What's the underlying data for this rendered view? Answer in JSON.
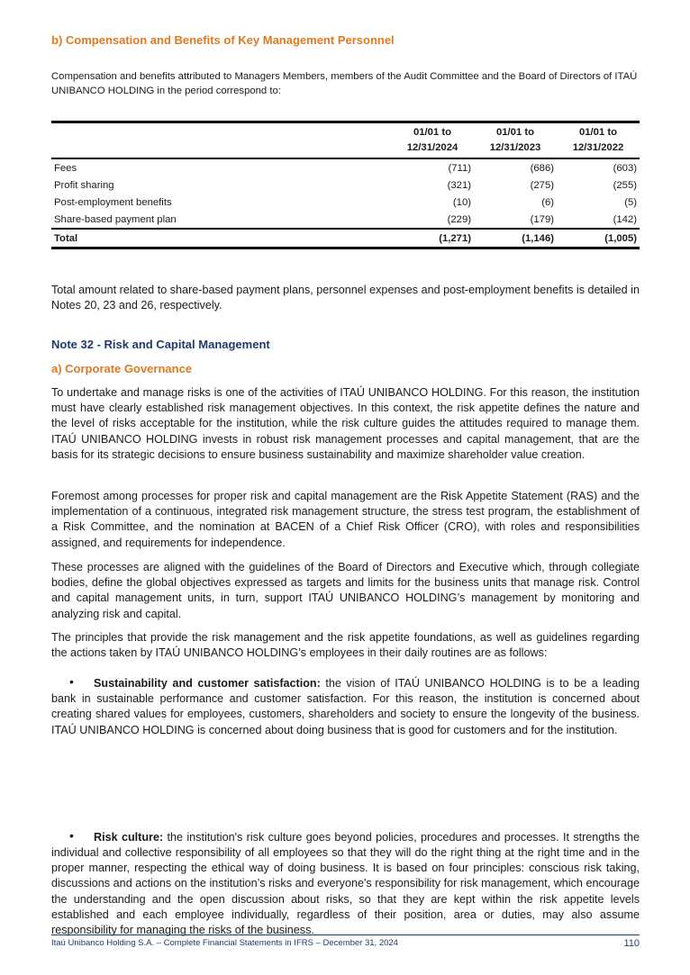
{
  "section_b": {
    "heading": "b) Compensation and Benefits of Key Management Personnel",
    "intro": "Compensation and benefits attributed to Managers Members, members of the Audit Committee and the Board of Directors of ITAÚ UNIBANCO HOLDING in the period correspond to:",
    "table": {
      "columns": [
        {
          "line1": "01/01 to",
          "line2": "12/31/2024"
        },
        {
          "line1": "01/01 to",
          "line2": "12/31/2023"
        },
        {
          "line1": "01/01 to",
          "line2": "12/31/2022"
        }
      ],
      "rows": [
        {
          "label": "Fees",
          "values": [
            "(711)",
            "(686)",
            "(603)"
          ]
        },
        {
          "label": "Profit sharing",
          "values": [
            "(321)",
            "(275)",
            "(255)"
          ]
        },
        {
          "label": "Post-employment benefits",
          "values": [
            "(10)",
            "(6)",
            "(5)"
          ]
        },
        {
          "label": "Share-based payment plan",
          "values": [
            "(229)",
            "(179)",
            "(142)"
          ]
        }
      ],
      "total": {
        "label": "Total",
        "values": [
          "(1,271)",
          "(1,146)",
          "(1,005)"
        ]
      }
    },
    "note": "Total amount related to share-based payment plans, personnel expenses and post-employment benefits is detailed in Notes 20, 23 and 26, respectively."
  },
  "note32": {
    "heading": "Note 32 - Risk and Capital Management",
    "sub_a": "a) Corporate Governance",
    "paragraphs": [
      "To undertake and manage risks is one of the activities of ITAÚ UNIBANCO HOLDING. For this reason, the institution must have clearly established risk management objectives. In this context, the risk appetite defines the nature and the level of risks acceptable for the institution, while the risk culture guides the attitudes required to manage them. ITAÚ UNIBANCO HOLDING invests in robust risk management processes and capital management, that are the basis for its strategic decisions to ensure business sustainability and maximize shareholder value creation.",
      "Foremost among processes for proper risk and capital management are the Risk Appetite Statement (RAS) and the implementation of a continuous, integrated risk management structure, the stress test program, the establishment of a Risk Committee, and the nomination at BACEN of a Chief Risk Officer (CRO), with roles and responsibilities assigned, and requirements for independence.",
      "These processes are aligned with the guidelines of the Board of Directors and Executive which, through collegiate bodies, define the global objectives expressed as targets and limits for the business units that manage risk. Control and capital management units, in turn, support ITAÚ UNIBANCO HOLDING’s management by monitoring and analyzing risk and capital.",
      "The principles that provide the risk management and the risk appetite foundations, as well as guidelines regarding the actions taken by ITAÚ UNIBANCO HOLDING’s employees in their daily routines are as follows:"
    ],
    "bullets": [
      {
        "title": "Sustainability and customer satisfaction:",
        "text": " the vision of ITAÚ UNIBANCO HOLDING is to be a leading bank in sustainable performance and customer satisfaction. For this reason, the institution is concerned about creating shared values for employees, customers, shareholders and society to ensure the longevity of the business. ITAÚ UNIBANCO HOLDING is concerned about doing business that is good for customers and for the institution."
      },
      {
        "title": "Risk culture:",
        "text": " the institution's risk culture goes beyond policies, procedures and processes. It strengths the individual and collective responsibility of all employees so that they will do the right thing at the right time and in the proper manner, respecting the ethical way of doing business. It is based on four principles: conscious risk taking, discussions and actions on the institution’s risks and everyone's responsibility for risk management, which encourage the understanding and the open discussion about risks, so that they are kept within the risk appetite levels established and each employee individually, regardless of their position, area or duties, may also assume responsibility for managing the risks of the business."
      }
    ]
  },
  "footer": {
    "text": "Itaú Unibanco Holding S.A. – Complete Financial Statements in IFRS – December 31, 2024",
    "page": "110"
  },
  "colors": {
    "orange_heading": "#e07a1f",
    "navy_heading": "#1f3a6e"
  }
}
